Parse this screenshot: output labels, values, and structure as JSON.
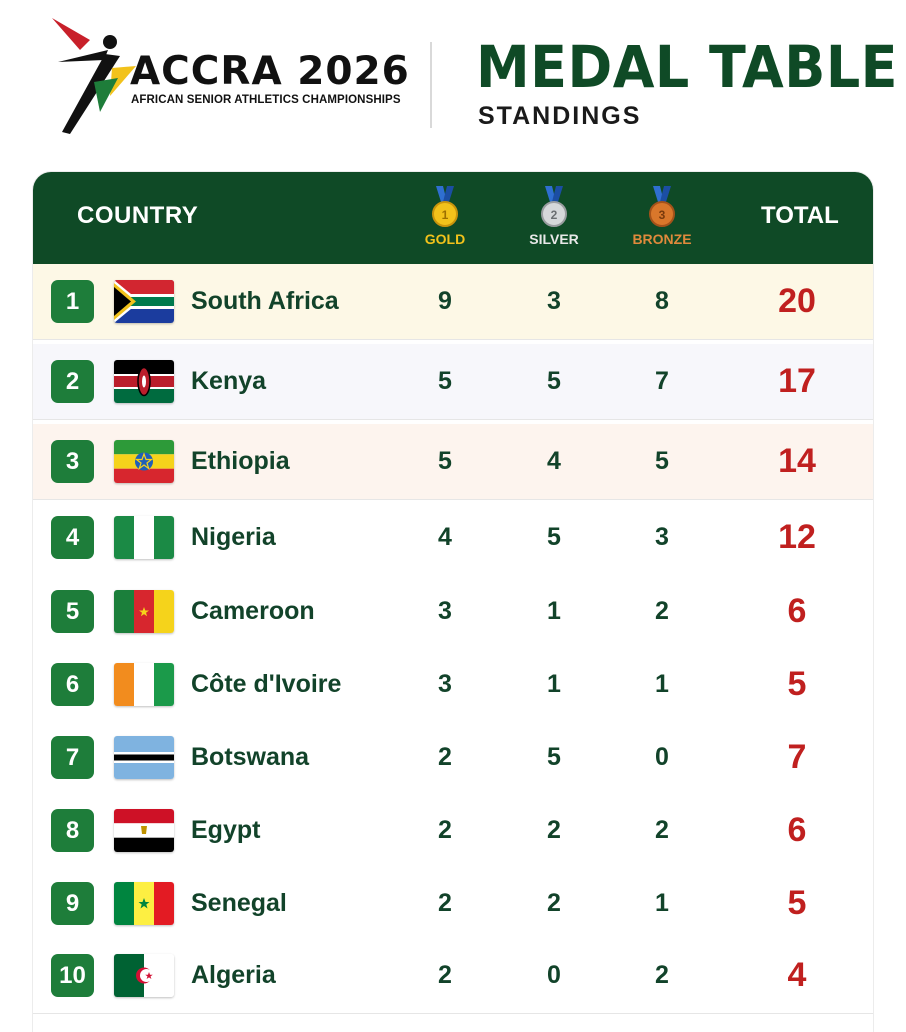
{
  "logo": {
    "title": "ACCRA 2026",
    "subtitle": "AFRICAN SENIOR ATHLETICS CHAMPIONSHIPS"
  },
  "header": {
    "title": "MEDAL TABLE",
    "subtitle": "STANDINGS"
  },
  "table": {
    "columns": {
      "country": "COUNTRY",
      "gold": "GOLD",
      "silver": "SILVER",
      "bronze": "BRONZE",
      "total": "TOTAL"
    },
    "medal_badges": {
      "gold": "1",
      "silver": "2",
      "bronze": "3"
    },
    "colors": {
      "header_bg": "#0f4a26",
      "rank_badge": "#1e7d3a",
      "total_text": "#c0201f",
      "gold": "#f2c21b",
      "silver": "#b9bcbf",
      "bronze": "#d9772b"
    },
    "rows": [
      {
        "rank": "1",
        "flag": "south-africa-flag",
        "country": "South Africa",
        "gold": "9",
        "silver": "3",
        "bronze": "8",
        "total": "20",
        "bg": "#fdf8e6"
      },
      {
        "rank": "2",
        "flag": "kenya-flag",
        "country": "Kenya",
        "gold": "5",
        "silver": "5",
        "bronze": "7",
        "total": "17",
        "bg": "#f7f7fb"
      },
      {
        "rank": "3",
        "flag": "ethiopia-flag",
        "country": "Ethiopia",
        "gold": "5",
        "silver": "4",
        "bronze": "5",
        "total": "14",
        "bg": "#fdf4ee"
      },
      {
        "rank": "4",
        "flag": "nigeria-flag",
        "country": "Nigeria",
        "gold": "4",
        "silver": "5",
        "bronze": "3",
        "total": "12",
        "bg": "#ffffff"
      },
      {
        "rank": "5",
        "flag": "cameroon-flag",
        "country": "Cameroon",
        "gold": "3",
        "silver": "1",
        "bronze": "2",
        "total": "6",
        "bg": "#ffffff"
      },
      {
        "rank": "6",
        "flag": "cote-divoire-flag",
        "country": "Côte d'Ivoire",
        "gold": "3",
        "silver": "1",
        "bronze": "1",
        "total": "5",
        "bg": "#ffffff"
      },
      {
        "rank": "7",
        "flag": "botswana-flag",
        "country": "Botswana",
        "gold": "2",
        "silver": "5",
        "bronze": "0",
        "total": "7",
        "bg": "#ffffff"
      },
      {
        "rank": "8",
        "flag": "egypt-flag",
        "country": "Egypt",
        "gold": "2",
        "silver": "2",
        "bronze": "2",
        "total": "6",
        "bg": "#ffffff"
      },
      {
        "rank": "9",
        "flag": "senegal-flag",
        "country": "Senegal",
        "gold": "2",
        "silver": "2",
        "bronze": "1",
        "total": "5",
        "bg": "#ffffff"
      },
      {
        "rank": "10",
        "flag": "algeria-flag",
        "country": "Algeria",
        "gold": "2",
        "silver": "0",
        "bronze": "2",
        "total": "4",
        "bg": "#ffffff"
      }
    ]
  }
}
